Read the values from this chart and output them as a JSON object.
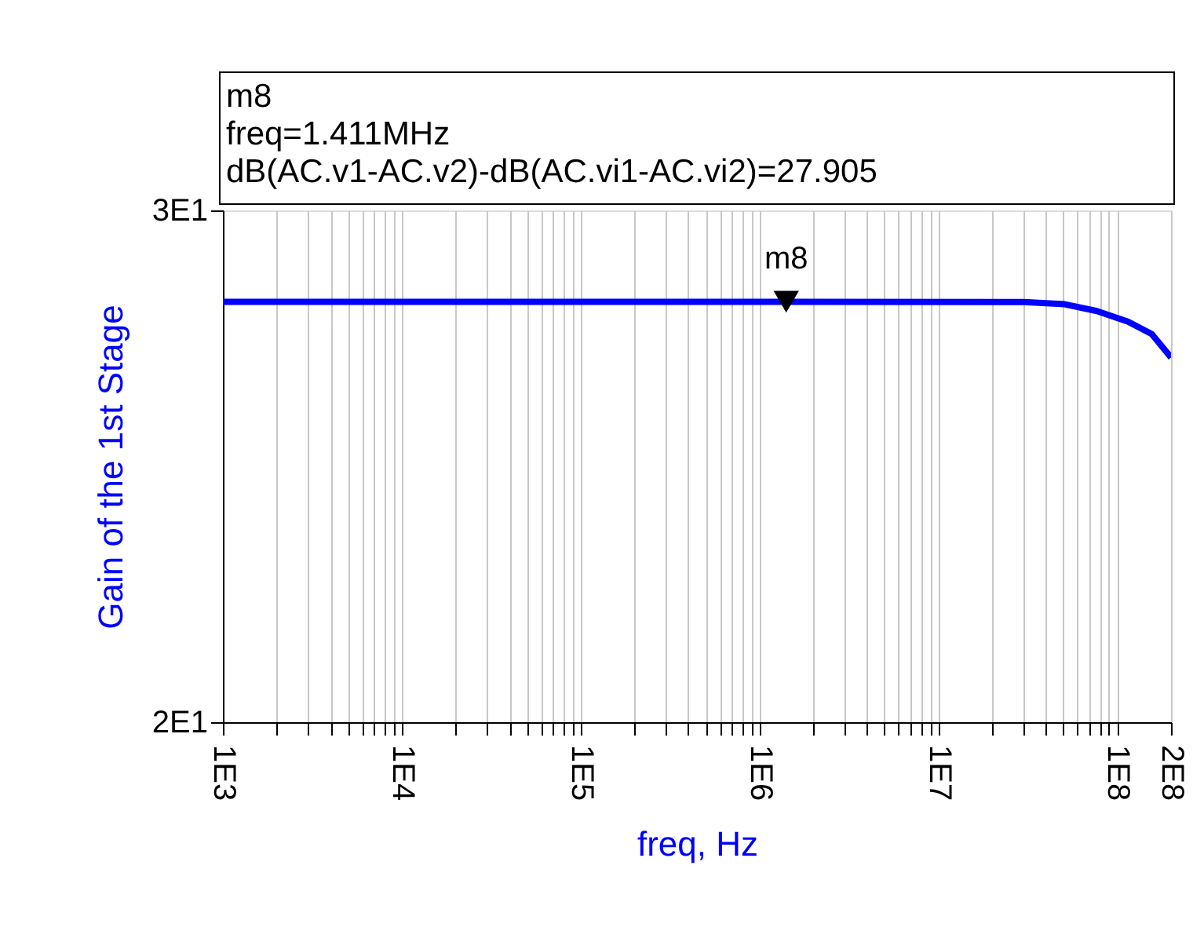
{
  "chart_data": {
    "type": "line",
    "xlabel": "freq, Hz",
    "ylabel": "Gain of the 1st Stage",
    "x": [
      1000,
      1000000,
      30000000,
      51000000,
      77000000,
      115000000,
      156000000,
      200000000
    ],
    "series": [
      {
        "color": "#0000ff",
        "values": [
          27.905,
          27.905,
          27.9,
          27.85,
          27.7,
          27.47,
          27.2,
          26.7
        ]
      }
    ],
    "log": "xy",
    "grid": "x",
    "marker": "none",
    "line_style": "solid",
    "xlim": [
      1000,
      200000000
    ],
    "xticks": [
      {
        "value": 1000,
        "label": "1E3"
      },
      {
        "value": 2000,
        "label": null
      },
      {
        "value": 3000,
        "label": null
      },
      {
        "value": 4000,
        "label": null
      },
      {
        "value": 5000,
        "label": null
      },
      {
        "value": 6000,
        "label": null
      },
      {
        "value": 7000,
        "label": null
      },
      {
        "value": 8000,
        "label": null
      },
      {
        "value": 9000,
        "label": null
      },
      {
        "value": 10000,
        "label": "1E4"
      },
      {
        "value": 20000,
        "label": null
      },
      {
        "value": 30000,
        "label": null
      },
      {
        "value": 40000,
        "label": null
      },
      {
        "value": 50000,
        "label": null
      },
      {
        "value": 60000,
        "label": null
      },
      {
        "value": 70000,
        "label": null
      },
      {
        "value": 80000,
        "label": null
      },
      {
        "value": 90000,
        "label": null
      },
      {
        "value": 100000,
        "label": "1E5"
      },
      {
        "value": 200000,
        "label": null
      },
      {
        "value": 300000,
        "label": null
      },
      {
        "value": 400000,
        "label": null
      },
      {
        "value": 500000,
        "label": null
      },
      {
        "value": 600000,
        "label": null
      },
      {
        "value": 700000,
        "label": null
      },
      {
        "value": 800000,
        "label": null
      },
      {
        "value": 900000,
        "label": null
      },
      {
        "value": 1000000,
        "label": "1E6"
      },
      {
        "value": 2000000,
        "label": null
      },
      {
        "value": 3000000,
        "label": null
      },
      {
        "value": 4000000,
        "label": null
      },
      {
        "value": 5000000,
        "label": null
      },
      {
        "value": 6000000,
        "label": null
      },
      {
        "value": 7000000,
        "label": null
      },
      {
        "value": 8000000,
        "label": null
      },
      {
        "value": 9000000,
        "label": null
      },
      {
        "value": 10000000,
        "label": "1E7"
      },
      {
        "value": 20000000,
        "label": null
      },
      {
        "value": 30000000,
        "label": null
      },
      {
        "value": 40000000,
        "label": null
      },
      {
        "value": 50000000,
        "label": null
      },
      {
        "value": 60000000,
        "label": null
      },
      {
        "value": 70000000,
        "label": null
      },
      {
        "value": 80000000,
        "label": null
      },
      {
        "value": 90000000,
        "label": null
      },
      {
        "value": 100000000,
        "label": "1E8"
      },
      {
        "value": 200000000,
        "label": "2E8"
      }
    ],
    "ylim": [
      20,
      30
    ],
    "yticks": [
      {
        "value": 20,
        "label": "2E1"
      },
      {
        "value": 30,
        "label": "3E1"
      }
    ],
    "annotations": [
      "m8\nfreq=1.411MHz\ndB(AC.v1-AC.v2)-dB(AC.vi1-AC.vi2)=27.905",
      {
        "text": "m8",
        "x": 1411000,
        "y": 27.905
      }
    ]
  }
}
